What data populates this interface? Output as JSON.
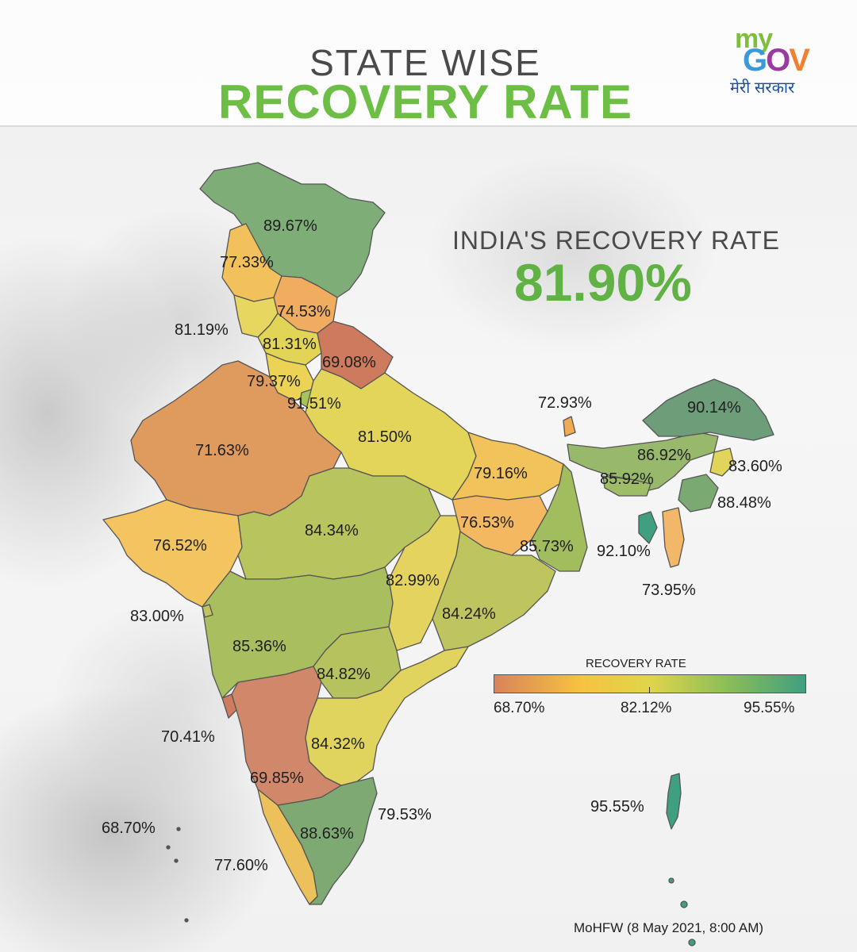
{
  "header": {
    "title_line1": "STATE WISE",
    "title_line2": "RECOVERY RATE"
  },
  "logo": {
    "my": "my",
    "gov_g": "G",
    "gov_o": "O",
    "gov_v": "V",
    "hindi": "मेरी सरकार"
  },
  "india": {
    "title": "INDIA'S RECOVERY RATE",
    "value": "81.90%"
  },
  "legend": {
    "title": "RECOVERY RATE",
    "min": "68.70%",
    "mid": "82.12%",
    "max": "95.55%",
    "colors": [
      "#d9835a",
      "#f6c340",
      "#e0d54a",
      "#8bbd58",
      "#3f9f80"
    ]
  },
  "regions": {
    "jammu_kashmir": "89.67%",
    "himachal_pradesh": "77.33%",
    "uttarakhand": "74.53%",
    "punjab": "81.19%",
    "haryana_north": "81.31%",
    "uttarakhand_east": "69.08%",
    "haryana": "79.37%",
    "delhi": "91.51%",
    "uttar_pradesh": "81.50%",
    "rajasthan": "71.63%",
    "sikkim": "72.93%",
    "arunachal_pradesh": "90.14%",
    "assam": "86.92%",
    "nagaland": "83.60%",
    "meghalaya": "85.92%",
    "manipur": "88.48%",
    "tripura": "92.10%",
    "mizoram": "73.95%",
    "bihar": "79.16%",
    "jharkhand": "76.53%",
    "west_bengal": "85.73%",
    "gujarat": "76.52%",
    "madhya_pradesh": "84.34%",
    "chhattisgarh": "82.99%",
    "odisha": "84.24%",
    "dadra_daman": "83.00%",
    "maharashtra": "85.36%",
    "telangana": "84.82%",
    "goa": "70.41%",
    "andhra_pradesh": "84.32%",
    "karnataka": "69.85%",
    "puducherry": "79.53%",
    "tamil_nadu": "88.63%",
    "lakshadweep": "68.70%",
    "kerala": "77.60%",
    "andaman_nicobar": "95.55%"
  },
  "source": "MoHFW (8 May 2021, 8:00 AM)"
}
